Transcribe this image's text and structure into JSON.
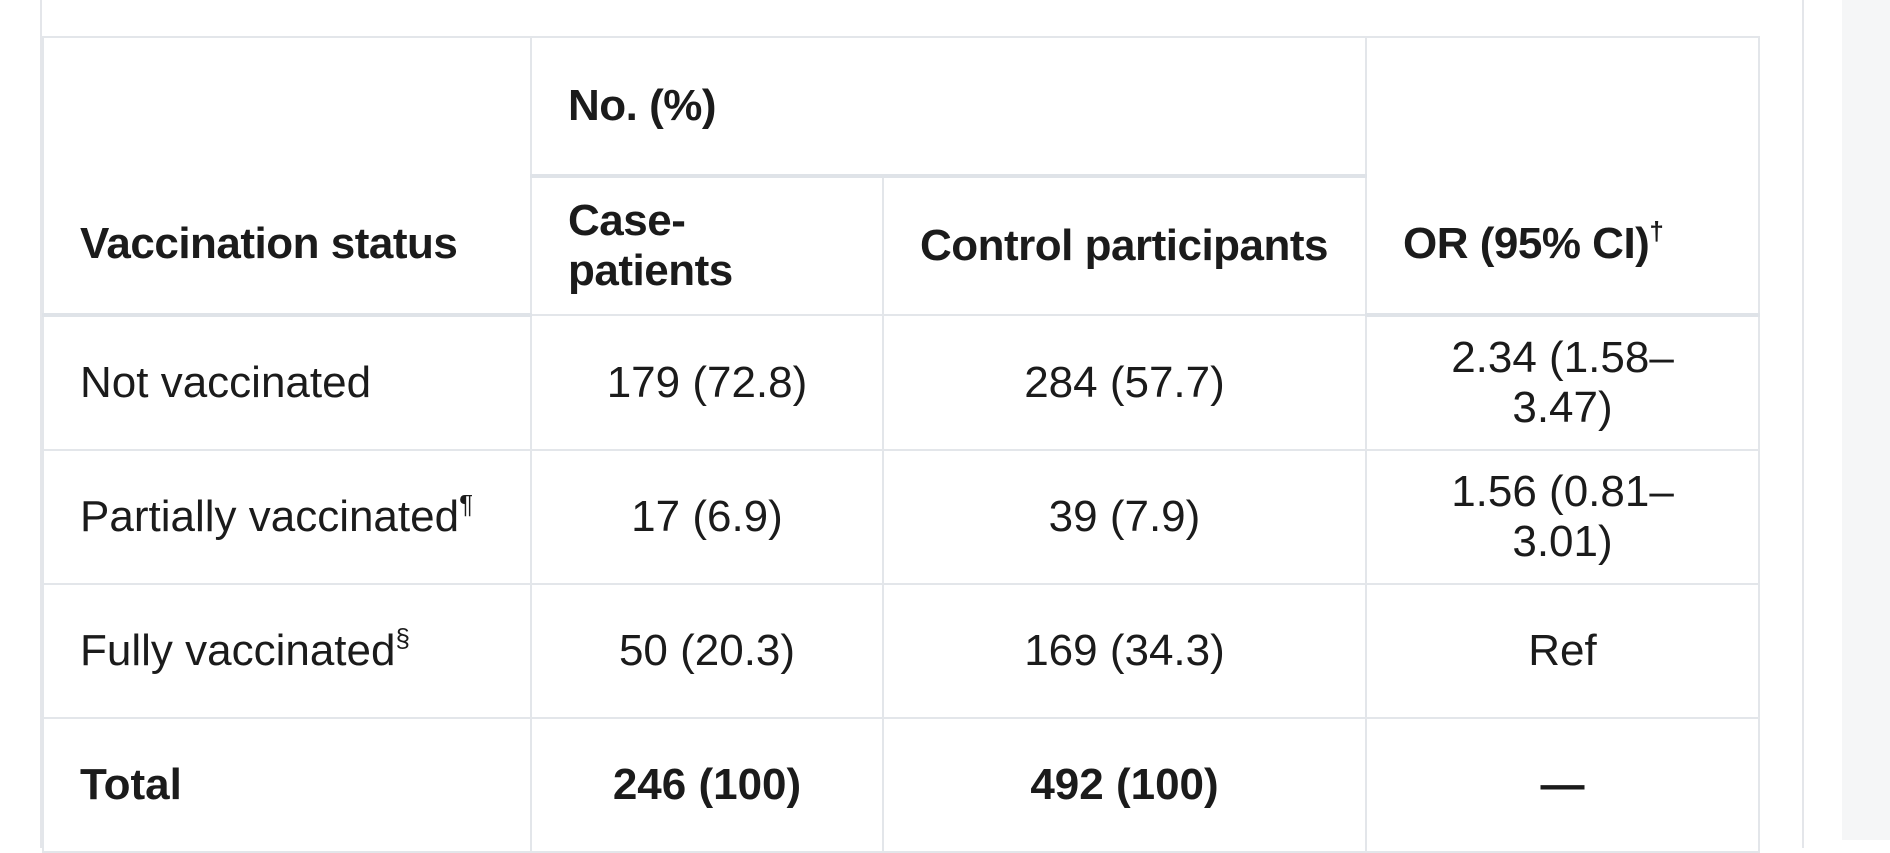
{
  "table": {
    "group_header": "No. (%)",
    "columns": {
      "status": "Vaccination status",
      "cases": "Case-patients",
      "controls": "Control participants",
      "or": "OR (95% CI)",
      "or_mark": "†"
    },
    "rows": [
      {
        "label": "Not vaccinated",
        "mark": "",
        "cases": "179 (72.8)",
        "controls": "284 (57.7)",
        "or": "2.34 (1.58–3.47)"
      },
      {
        "label": "Partially vaccinated",
        "mark": "¶",
        "cases": "17 (6.9)",
        "controls": "39 (7.9)",
        "or": "1.56 (0.81–3.01)"
      },
      {
        "label": "Fully vaccinated",
        "mark": "§",
        "cases": "50 (20.3)",
        "controls": "169 (34.3)",
        "or": "Ref"
      }
    ],
    "total": {
      "label": "Total",
      "cases": "246 (100)",
      "controls": "492 (100)",
      "or": "—"
    }
  }
}
